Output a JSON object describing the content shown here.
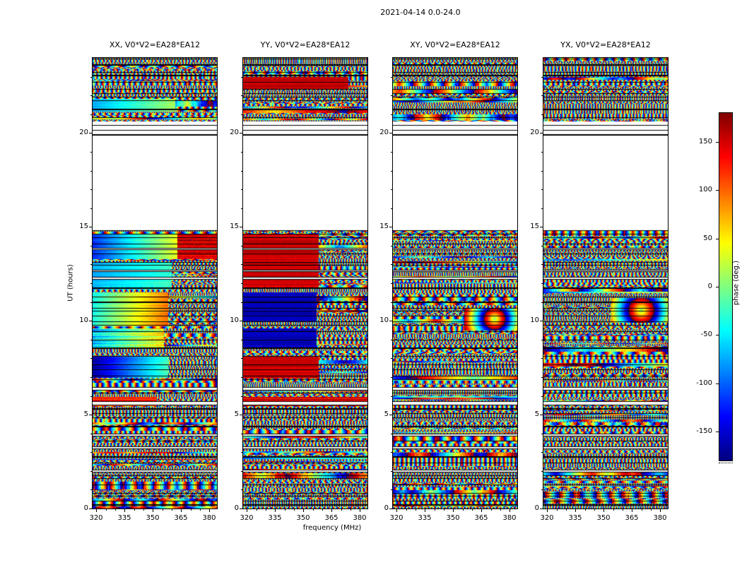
{
  "chart_data": {
    "type": "heatmap",
    "title": "2021-04-14 0.0-24.0",
    "xlabel": "frequency (MHz)",
    "ylabel": "UT (hours)",
    "colormap": "jet",
    "x_range_mhz": [
      318,
      384
    ],
    "x_major_ticks": [
      320,
      335,
      350,
      365,
      380
    ],
    "x_minor_step_mhz": 5,
    "y_range_hours": [
      0,
      24
    ],
    "y_major_ticks": [
      0,
      5,
      10,
      15,
      20
    ],
    "y_minor_step_hours": 1,
    "colorbar": {
      "label": "phase (deg.)",
      "tick_labels": [
        "150",
        "100",
        "50",
        "0",
        "-50",
        "-100",
        "-150"
      ],
      "tick_values": [
        150,
        100,
        50,
        0,
        -50,
        -100,
        -150
      ],
      "range_deg": [
        -180,
        180
      ]
    },
    "no_data_gap_hours": [
      14.85,
      20.6
    ],
    "gap_scan_lines_hours": [
      19.9,
      20.15,
      20.42
    ],
    "panels": [
      {
        "key": "xx",
        "title": "XX, V0*V2=EA28*EA12",
        "features": [
          {
            "mode": "hgrad",
            "h0": 13.3,
            "h1": 14.6,
            "f0": 318,
            "f1": 363,
            "p0": -120,
            "p1": 40,
            "jitter": 10
          },
          {
            "mode": "flat",
            "h0": 13.3,
            "h1": 14.6,
            "f0": 363,
            "f1": 384,
            "p": 150,
            "jitter": 25
          },
          {
            "mode": "hgrad",
            "h0": 11.85,
            "h1": 13.1,
            "f0": 318,
            "f1": 360,
            "p0": -75,
            "p1": -25,
            "jitter": 10
          },
          {
            "mode": "hgrad",
            "h0": 9.7,
            "h1": 11.5,
            "f0": 318,
            "f1": 358,
            "p0": -40,
            "p1": 95,
            "jitter": 12
          },
          {
            "mode": "hgrad",
            "h0": 8.55,
            "h1": 9.6,
            "f0": 318,
            "f1": 356,
            "p0": -60,
            "p1": 60,
            "jitter": 35
          },
          {
            "mode": "hgrad",
            "h0": 7.0,
            "h1": 8.1,
            "f0": 318,
            "f1": 358,
            "p0": -170,
            "p1": -20,
            "jitter": 10
          },
          {
            "mode": "flat",
            "h0": 5.45,
            "h1": 5.95,
            "f0": 318,
            "f1": 352,
            "p": 120,
            "jitter": 25
          },
          {
            "mode": "hgrad",
            "h0": 21.15,
            "h1": 21.8,
            "f0": 318,
            "f1": 362,
            "p0": -75,
            "p1": 15,
            "jitter": 8
          }
        ]
      },
      {
        "key": "yy",
        "title": "YY, V0*V2=EA28*EA12",
        "features": [
          {
            "mode": "flat",
            "h0": 11.85,
            "h1": 14.6,
            "f0": 318,
            "f1": 358,
            "p": 152,
            "jitter": 13
          },
          {
            "mode": "noise",
            "h0": 9.6,
            "h1": 9.95,
            "f0": 318,
            "f1": 384
          },
          {
            "mode": "flat",
            "h0": 8.55,
            "h1": 11.5,
            "f0": 318,
            "f1": 357,
            "p": -158,
            "jitter": 14
          },
          {
            "mode": "flat",
            "h0": 7.0,
            "h1": 8.1,
            "f0": 318,
            "f1": 358,
            "p": 150,
            "jitter": 14
          },
          {
            "mode": "flat",
            "h0": 5.45,
            "h1": 5.95,
            "f0": 318,
            "f1": 384,
            "p": 140,
            "jitter": 25
          },
          {
            "mode": "flat",
            "h0": 22.35,
            "h1": 23.0,
            "f0": 318,
            "f1": 374,
            "p": 155,
            "jitter": 12
          }
        ]
      },
      {
        "key": "xy",
        "title": "XY, V0*V2=EA28*EA12",
        "features": [
          {
            "mode": "rings",
            "h0": 9.5,
            "h1": 10.7,
            "f0": 356,
            "f1": 384,
            "hc": 10.1,
            "fc": 372,
            "scale": 12
          }
        ]
      },
      {
        "key": "yx",
        "title": "YX, V0*V2=EA28*EA12",
        "features": [
          {
            "mode": "rings",
            "h0": 9.9,
            "h1": 11.2,
            "f0": 354,
            "f1": 384,
            "hc": 10.55,
            "fc": 370,
            "scale": 10
          }
        ]
      }
    ],
    "description": "Dynamic spectra of visibility phase versus frequency (320-380 MHz) and time (0-24 UT hours) for baseline V0*V2=EA28*EA12, four correlation products XX, YY, XY, YX, on 2021-04-14. Phase uses a jet colormap spanning -180 to +180 degrees. Data are short scans separated by thin black horizontal lines; there is no data between about 15 and 20.5 UT (white gap with a few isolated scan lines near 20 UT). Between 7 and 14.6 UT below ~358 MHz, XX shows smooth frequency-dependent phase gradients (blue-cyan-green-yellow-red), YY shows saturated phase blocks near +150 deg (red) and -160 deg (blue), while XY and YX remain noise-like with small smooth phase eddies near 10-11 UT above ~355 MHz."
  }
}
